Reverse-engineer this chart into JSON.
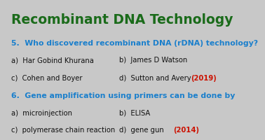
{
  "title": "Recombinant DNA Technology",
  "title_color": "#1a6b1a",
  "title_bg": "#c8c8c8",
  "content_bg": "#ffffff",
  "q5_text": "5.  Who discovered recombinant DNA (rDNA) technology?",
  "q5_color": "#1a7fcc",
  "q5_options_left": [
    "a)  Har Gobind Khurana",
    "c)  Cohen and Boyer"
  ],
  "q5_options_right": [
    "b)  James D Watson",
    "d)  Sutton and Avery"
  ],
  "q5_answer": "(2019)",
  "q6_text": "6.  Gene amplification using primers can be done by",
  "q6_color": "#1a7fcc",
  "q6_options_left": [
    "a)  microinjection",
    "c)  polymerase chain reaction"
  ],
  "q6_options_right": [
    "b)  ELISA",
    "d)  gene gun"
  ],
  "q6_answer": "(2014)",
  "answer_color": "#cc1100",
  "option_color": "#111111",
  "title_fontsize": 13.5,
  "q_fontsize": 7.8,
  "opt_fontsize": 7.2
}
